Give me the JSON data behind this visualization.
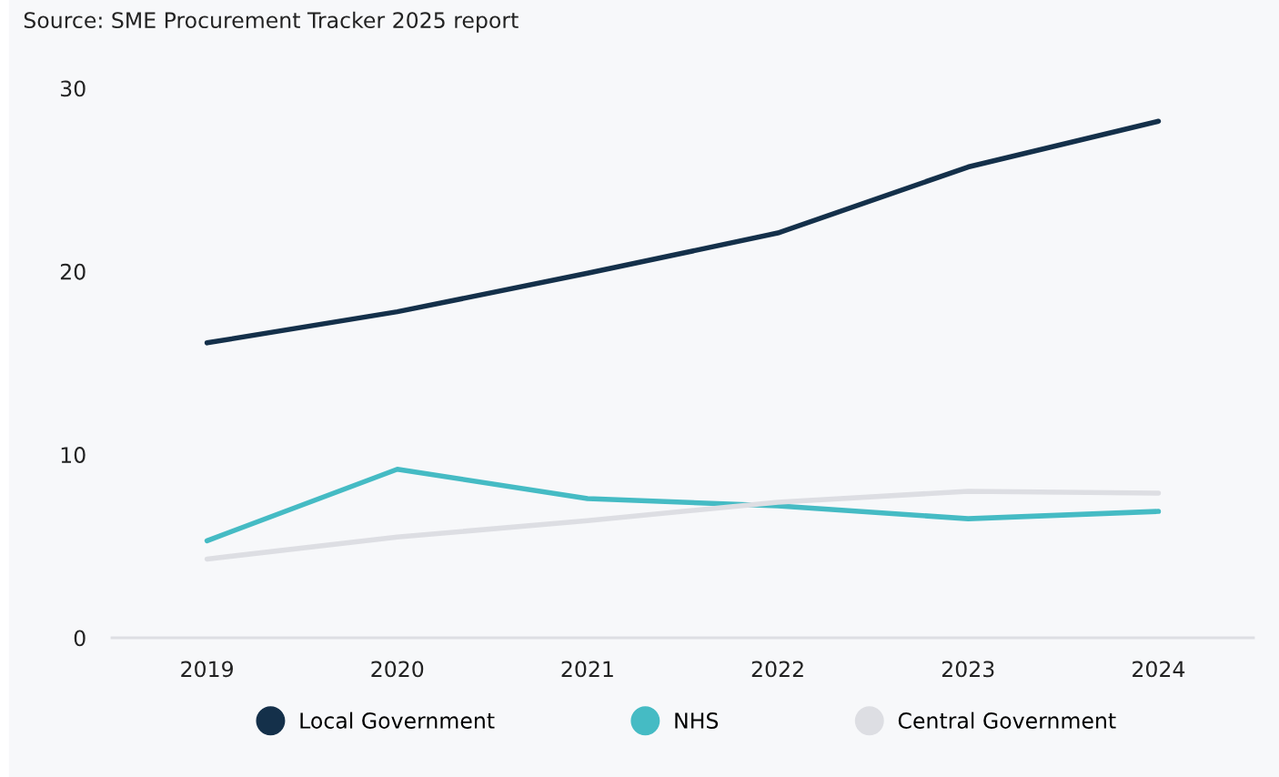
{
  "chart_data": {
    "type": "line",
    "annotations": [
      "Source: SME Procurement Tracker 2025 report"
    ],
    "categories": [
      "2019",
      "2020",
      "2021",
      "2022",
      "2023",
      "2024"
    ],
    "series": [
      {
        "name": "Local Government",
        "color": "#14304a",
        "values": [
          16.1,
          17.8,
          19.9,
          22.1,
          25.7,
          28.2
        ]
      },
      {
        "name": "NHS",
        "color": "#45bbc4",
        "values": [
          5.3,
          9.2,
          7.6,
          7.2,
          6.5,
          6.9
        ]
      },
      {
        "name": "Central Government",
        "color": "#dddee3",
        "values": [
          4.3,
          5.5,
          6.4,
          7.4,
          8.0,
          7.9
        ]
      }
    ],
    "ylim": [
      0,
      30
    ],
    "yticks": [
      0,
      10,
      20,
      30
    ],
    "grid": false,
    "legend": "bottom",
    "marker": "none",
    "line_style": "solid"
  }
}
